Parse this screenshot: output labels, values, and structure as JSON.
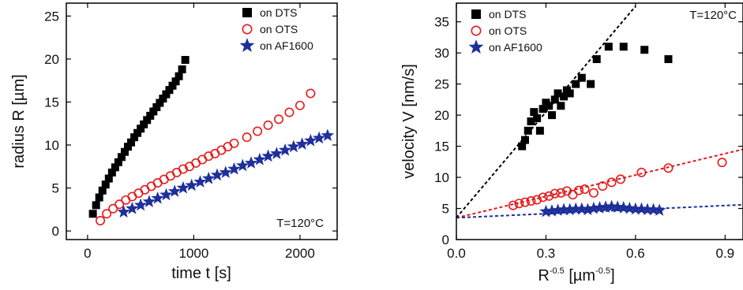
{
  "chart_data": [
    {
      "type": "scatter",
      "xlabel": "time t [s]",
      "ylabel": "radius R [µm]",
      "xlim": [
        -200,
        2350
      ],
      "ylim": [
        -1,
        26.5
      ],
      "xticks": [
        0,
        1000,
        2000
      ],
      "yticks": [
        0,
        5,
        10,
        15,
        20,
        25
      ],
      "annotation": "T=120°C",
      "legend_position": "top-right",
      "series": [
        {
          "name": "on DTS",
          "marker": "square",
          "color": "#000000",
          "x": [
            50,
            80,
            110,
            140,
            170,
            200,
            230,
            260,
            290,
            320,
            350,
            380,
            410,
            440,
            470,
            500,
            530,
            560,
            590,
            620,
            650,
            680,
            710,
            740,
            770,
            800,
            830,
            860,
            890,
            920
          ],
          "y": [
            2.0,
            3.0,
            3.9,
            4.7,
            5.4,
            6.1,
            6.8,
            7.4,
            8.0,
            8.6,
            9.2,
            9.8,
            10.3,
            10.9,
            11.4,
            11.9,
            12.4,
            12.9,
            13.4,
            13.9,
            14.4,
            14.9,
            15.4,
            15.9,
            16.4,
            16.9,
            17.4,
            18.0,
            18.8,
            19.9
          ]
        },
        {
          "name": "on OTS",
          "marker": "circle",
          "color": "#e41a1c",
          "x": [
            120,
            180,
            240,
            300,
            360,
            420,
            480,
            540,
            600,
            660,
            720,
            780,
            840,
            900,
            960,
            1020,
            1080,
            1140,
            1200,
            1260,
            1320,
            1380,
            1500,
            1600,
            1700,
            1800,
            1900,
            2000,
            2100
          ],
          "y": [
            1.2,
            2.0,
            2.6,
            3.1,
            3.6,
            4.0,
            4.4,
            4.8,
            5.2,
            5.6,
            6.0,
            6.4,
            6.8,
            7.2,
            7.5,
            7.9,
            8.3,
            8.7,
            9.0,
            9.4,
            9.8,
            10.2,
            10.9,
            11.6,
            12.3,
            13.0,
            13.8,
            14.6,
            16.0
          ]
        },
        {
          "name": "on AF1600",
          "marker": "star",
          "color": "#1f2f9a",
          "x": [
            340,
            420,
            500,
            580,
            660,
            740,
            820,
            900,
            980,
            1060,
            1140,
            1220,
            1300,
            1380,
            1460,
            1540,
            1620,
            1700,
            1780,
            1860,
            1940,
            2020,
            2100,
            2180,
            2260
          ],
          "y": [
            2.2,
            2.6,
            3.0,
            3.4,
            3.8,
            4.2,
            4.6,
            5.0,
            5.3,
            5.7,
            6.1,
            6.5,
            6.8,
            7.2,
            7.6,
            7.9,
            8.3,
            8.7,
            9.0,
            9.4,
            9.8,
            10.1,
            10.5,
            10.8,
            11.1
          ]
        }
      ]
    },
    {
      "type": "scatter",
      "xlabel_base": "R",
      "xlabel_sup": "-0.5",
      "xlabel_unit_open": " [µm",
      "xlabel_unit_sup": "-0.5",
      "xlabel_unit_close": "]",
      "ylabel": "velocity V [nm/s]",
      "xlim": [
        0.0,
        0.96
      ],
      "ylim": [
        0,
        38
      ],
      "xticks": [
        0.0,
        0.3,
        0.6,
        0.9
      ],
      "xtick_labels": [
        "0.0",
        "0.3",
        "0.6",
        "0.9"
      ],
      "yticks": [
        0,
        5,
        10,
        15,
        20,
        25,
        30,
        35
      ],
      "annotation": "T=120°C",
      "legend_position": "top-left",
      "fit_lines": [
        {
          "color": "#000000",
          "x": [
            0.0,
            0.6
          ],
          "y": [
            3.5,
            37.5
          ]
        },
        {
          "color": "#e41a1c",
          "x": [
            0.0,
            0.96
          ],
          "y": [
            3.5,
            14.5
          ]
        },
        {
          "color": "#1f2f9a",
          "x": [
            0.0,
            0.96
          ],
          "y": [
            3.5,
            5.6
          ]
        }
      ],
      "series": [
        {
          "name": "on DTS",
          "marker": "square",
          "color": "#000000",
          "x": [
            0.22,
            0.23,
            0.24,
            0.25,
            0.26,
            0.27,
            0.28,
            0.29,
            0.3,
            0.31,
            0.32,
            0.33,
            0.34,
            0.35,
            0.36,
            0.37,
            0.38,
            0.4,
            0.42,
            0.45,
            0.47,
            0.51,
            0.56,
            0.63,
            0.71
          ],
          "y": [
            15.0,
            16.0,
            17.5,
            19.0,
            20.5,
            19.5,
            17.5,
            21.0,
            22.0,
            21.5,
            20.0,
            22.5,
            23.5,
            21.5,
            23.0,
            24.0,
            23.5,
            25.0,
            26.0,
            25.0,
            29.0,
            31.0,
            31.0,
            30.5,
            29.0
          ]
        },
        {
          "name": "on OTS",
          "marker": "circle",
          "color": "#e41a1c",
          "x": [
            0.19,
            0.21,
            0.23,
            0.25,
            0.27,
            0.29,
            0.31,
            0.33,
            0.35,
            0.37,
            0.39,
            0.41,
            0.43,
            0.46,
            0.49,
            0.52,
            0.55,
            0.62,
            0.71,
            0.89
          ],
          "y": [
            5.5,
            5.8,
            6.0,
            6.2,
            6.4,
            6.8,
            7.0,
            7.4,
            7.5,
            7.8,
            7.2,
            7.9,
            8.1,
            7.5,
            8.6,
            9.2,
            9.7,
            10.8,
            11.5,
            12.4
          ]
        },
        {
          "name": "on AF1600",
          "marker": "star",
          "color": "#1f2f9a",
          "x": [
            0.3,
            0.32,
            0.34,
            0.36,
            0.38,
            0.4,
            0.42,
            0.44,
            0.46,
            0.48,
            0.5,
            0.52,
            0.54,
            0.56,
            0.58,
            0.6,
            0.62,
            0.64,
            0.66,
            0.68
          ],
          "y": [
            4.5,
            4.6,
            4.7,
            4.8,
            4.8,
            4.9,
            4.9,
            4.8,
            5.0,
            5.1,
            5.2,
            5.3,
            5.2,
            5.1,
            5.0,
            4.9,
            4.9,
            4.8,
            4.8,
            4.7
          ]
        }
      ]
    }
  ]
}
